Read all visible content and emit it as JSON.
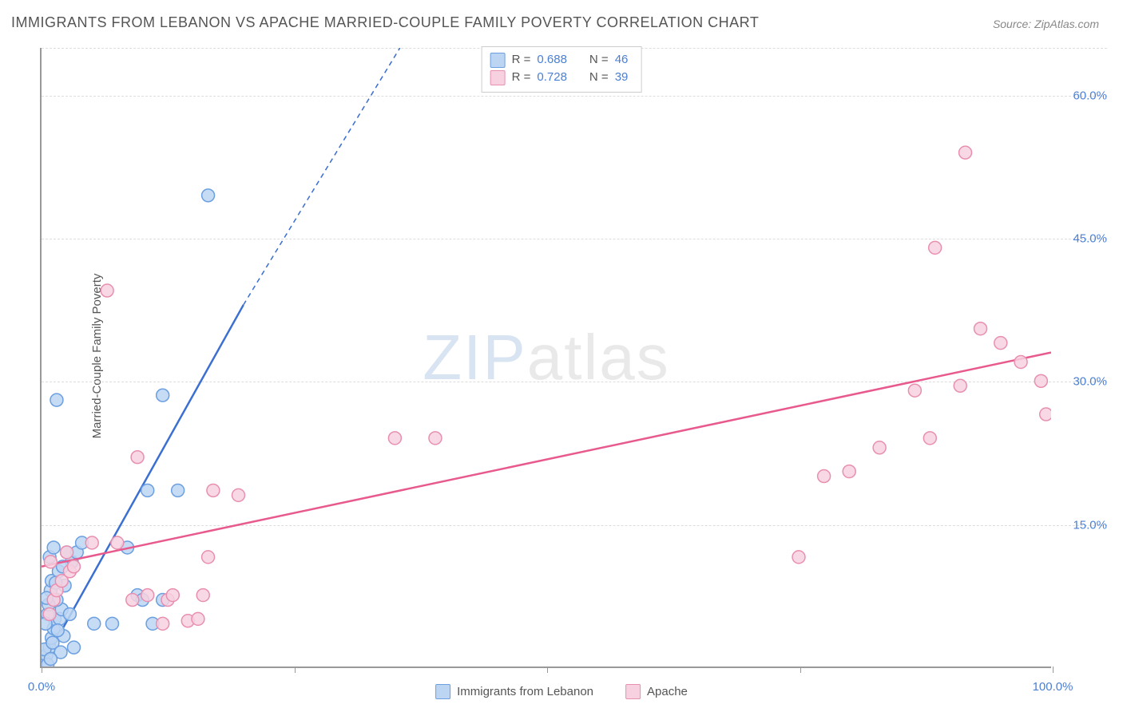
{
  "title": "IMMIGRANTS FROM LEBANON VS APACHE MARRIED-COUPLE FAMILY POVERTY CORRELATION CHART",
  "source_prefix": "Source: ",
  "source": "ZipAtlas.com",
  "ylabel": "Married-Couple Family Poverty",
  "watermark_zip": "ZIP",
  "watermark_atlas": "atlas",
  "chart": {
    "type": "scatter",
    "background_color": "#ffffff",
    "grid_color": "#dddddd",
    "axis_color": "#999999",
    "xlim": [
      0,
      100
    ],
    "ylim": [
      0,
      65
    ],
    "ytick_vals": [
      15,
      30,
      45,
      60
    ],
    "ytick_labels": [
      "15.0%",
      "30.0%",
      "45.0%",
      "60.0%"
    ],
    "ytick_color": "#4a7fd4",
    "xtick_vals": [
      0,
      50,
      100
    ],
    "xtick_labels": [
      "0.0%",
      "",
      "100.0%"
    ],
    "xtick_minor": [
      25,
      75
    ],
    "xtick_color": "#4a7fd4",
    "series": [
      {
        "name": "Immigrants from Lebanon",
        "color_fill": "#bcd5f2",
        "color_stroke": "#6b9fe0",
        "marker_radius": 8,
        "marker_opacity": 0.85,
        "r_value": "0.688",
        "n_value": "46",
        "trend": {
          "x1": 0,
          "y1": 0,
          "x2_solid": 20,
          "y2_solid": 38,
          "x2_dash": 35.5,
          "y2_dash": 65,
          "color": "#3b6fd1",
          "width": 2.5
        },
        "points": [
          [
            0.4,
            0.5
          ],
          [
            0.5,
            1.2
          ],
          [
            0.8,
            2.0
          ],
          [
            1.0,
            3.0
          ],
          [
            1.2,
            4.0
          ],
          [
            1.3,
            5.0
          ],
          [
            0.6,
            5.5
          ],
          [
            1.8,
            5.0
          ],
          [
            2.0,
            6.0
          ],
          [
            1.5,
            7.0
          ],
          [
            0.9,
            8.0
          ],
          [
            2.3,
            8.5
          ],
          [
            1.0,
            9.0
          ],
          [
            1.7,
            10.0
          ],
          [
            3.0,
            11.0
          ],
          [
            0.8,
            11.5
          ],
          [
            2.5,
            12.0
          ],
          [
            1.2,
            12.5
          ],
          [
            3.5,
            12.0
          ],
          [
            8.5,
            12.5
          ],
          [
            4.0,
            13.0
          ],
          [
            5.2,
            4.5
          ],
          [
            7.0,
            4.5
          ],
          [
            9.5,
            7.5
          ],
          [
            10.0,
            7.0
          ],
          [
            11.0,
            4.5
          ],
          [
            12.0,
            7.0
          ],
          [
            10.5,
            18.5
          ],
          [
            13.5,
            18.5
          ],
          [
            1.5,
            28.0
          ],
          [
            12.0,
            28.5
          ],
          [
            16.5,
            49.5
          ],
          [
            0.6,
            0.2
          ],
          [
            0.3,
            1.8
          ],
          [
            2.2,
            3.2
          ],
          [
            0.7,
            6.5
          ],
          [
            1.1,
            2.5
          ],
          [
            1.6,
            3.8
          ],
          [
            0.4,
            4.5
          ],
          [
            2.8,
            5.5
          ],
          [
            1.9,
            1.5
          ],
          [
            0.5,
            7.2
          ],
          [
            3.2,
            2.0
          ],
          [
            1.4,
            8.8
          ],
          [
            0.9,
            0.8
          ],
          [
            2.1,
            10.5
          ]
        ]
      },
      {
        "name": "Apache",
        "color_fill": "#f7d1df",
        "color_stroke": "#e88fb0",
        "marker_radius": 8,
        "marker_opacity": 0.85,
        "r_value": "0.728",
        "n_value": "39",
        "trend": {
          "x1": 0,
          "y1": 10.5,
          "x2_solid": 100,
          "y2_solid": 33,
          "color": "#e85a8d",
          "width": 2.5
        },
        "points": [
          [
            0.8,
            5.5
          ],
          [
            1.2,
            7.0
          ],
          [
            1.5,
            8.0
          ],
          [
            2.0,
            9.0
          ],
          [
            2.8,
            10.0
          ],
          [
            3.2,
            10.5
          ],
          [
            5.0,
            13.0
          ],
          [
            7.5,
            13.0
          ],
          [
            9.0,
            7.0
          ],
          [
            10.5,
            7.5
          ],
          [
            12.0,
            4.5
          ],
          [
            12.5,
            7.0
          ],
          [
            13.0,
            7.5
          ],
          [
            14.5,
            4.8
          ],
          [
            15.5,
            5.0
          ],
          [
            16.0,
            7.5
          ],
          [
            16.5,
            11.5
          ],
          [
            17.0,
            18.5
          ],
          [
            19.5,
            18.0
          ],
          [
            9.5,
            22.0
          ],
          [
            6.5,
            39.5
          ],
          [
            35.0,
            24.0
          ],
          [
            39.0,
            24.0
          ],
          [
            77.5,
            20.0
          ],
          [
            80.0,
            20.5
          ],
          [
            75.0,
            11.5
          ],
          [
            83.0,
            23.0
          ],
          [
            86.5,
            29.0
          ],
          [
            88.0,
            24.0
          ],
          [
            91.0,
            29.5
          ],
          [
            93.0,
            35.5
          ],
          [
            95.0,
            34.0
          ],
          [
            97.0,
            32.0
          ],
          [
            99.0,
            30.0
          ],
          [
            99.5,
            26.5
          ],
          [
            88.5,
            44.0
          ],
          [
            91.5,
            54.0
          ],
          [
            0.9,
            11.0
          ],
          [
            2.5,
            12.0
          ]
        ]
      }
    ],
    "legend_top": {
      "r_label": "R =",
      "n_label": "N =",
      "text_color_label": "#555555",
      "text_color_value": "#4a7fd4"
    },
    "legend_bottom_color": "#555555"
  }
}
